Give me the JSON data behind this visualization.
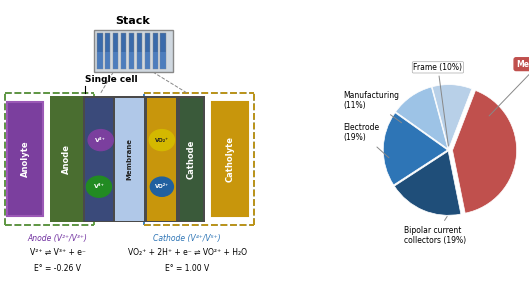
{
  "title_stack": "Stack",
  "label_single_cell": "Single cell",
  "label_anolyte": "Anolyte",
  "label_catholyte": "Catholyte",
  "label_anode": "Anode",
  "label_cathode": "Cathode",
  "label_membrane": "Membrane",
  "anode_label": "Anode (V²⁺/V³⁺)",
  "anode_eq1": "V²⁺ ⇌ V³⁺ + e⁻",
  "anode_eq2": "E° = -0.26 V",
  "cathode_label": "Cathode (V⁴⁺/V⁵⁺)",
  "cathode_eq1": "VO₂⁺ + 2H⁺ + e⁻ ⇌ VO²⁺ + H₂O",
  "cathode_eq2": "E° = 1.00 V",
  "pie_values": [
    10,
    41,
    19,
    19,
    11
  ],
  "pie_colors": [
    "#b8d0e8",
    "#c0504d",
    "#1f4e79",
    "#2e75b6",
    "#9dc3e6"
  ],
  "pie_explode": [
    0.02,
    0.06,
    0.02,
    0.02,
    0.02
  ],
  "bg_color": "#ffffff",
  "anolyte_color": "#7b3f9e",
  "anolyte_border": "#9b59b6",
  "catholyte_color": "#c8960c",
  "catholyte_border": "#c8960c",
  "anode_color": "#4a6e30",
  "cathode_color": "#3a5a90",
  "cell_gray": "#4a4a4a",
  "membrane_color": "#b0c8e8",
  "cathode_orange": "#c8960c",
  "ion_purple": "#7b3f9e",
  "ion_green": "#228B22",
  "ion_yellow": "#d4b800",
  "ion_blue": "#2060a0"
}
